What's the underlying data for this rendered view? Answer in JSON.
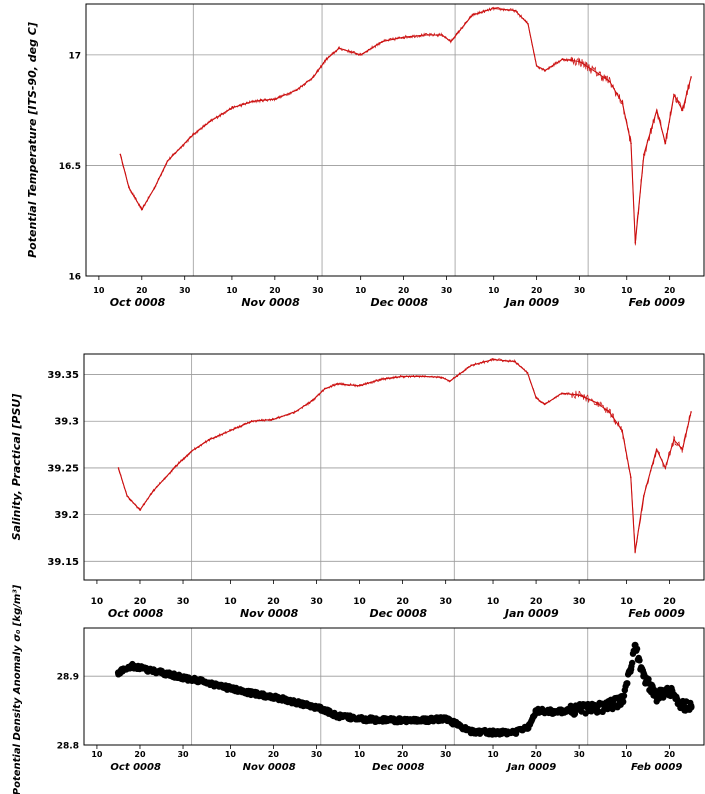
{
  "chart_data": [
    {
      "type": "line",
      "ylabel": "Potential Temperature [ITS-90, deg C]",
      "ylim": [
        16.0,
        17.23
      ],
      "yticks": [
        16,
        16.5,
        17
      ],
      "ytick_labels": [
        "16",
        "16.5",
        "17"
      ],
      "xlim": [
        "0008-10-07",
        "0009-02-28"
      ],
      "x_day_ticks": [
        "10",
        "20",
        "30",
        "10",
        "20",
        "30",
        "10",
        "20",
        "30",
        "10",
        "20",
        "30",
        "10",
        "20"
      ],
      "x_month_labels": [
        "Oct 0008",
        "Nov 0008",
        "Dec 0008",
        "Jan 0009",
        "Feb 0009"
      ],
      "grid": true,
      "color": "#cc1111",
      "series": [
        {
          "x": [
            "0008-10-15",
            "0008-10-17",
            "0008-10-20",
            "0008-10-23",
            "0008-10-26",
            "0008-10-29",
            "0008-11-01",
            "0008-11-05",
            "0008-11-10",
            "0008-11-15",
            "0008-11-20",
            "0008-11-25",
            "0008-11-29",
            "0008-12-02",
            "0008-12-05",
            "0008-12-10",
            "0008-12-15",
            "0008-12-20",
            "0008-12-25",
            "0008-12-29",
            "0008-12-31",
            "0009-01-05",
            "0009-01-10",
            "0009-01-15",
            "0009-01-18",
            "0009-01-20",
            "0009-01-22",
            "0009-01-26",
            "0009-01-30",
            "0009-02-03",
            "0009-02-06",
            "0009-02-09",
            "0009-02-11",
            "0009-02-12",
            "0009-02-14",
            "0009-02-17",
            "0009-02-19",
            "0009-02-21",
            "0009-02-23",
            "0009-02-25"
          ],
          "y": [
            16.55,
            16.4,
            16.3,
            16.4,
            16.52,
            16.58,
            16.64,
            16.7,
            16.76,
            16.79,
            16.8,
            16.84,
            16.9,
            16.98,
            17.03,
            17.0,
            17.06,
            17.08,
            17.09,
            17.09,
            17.06,
            17.18,
            17.21,
            17.2,
            17.14,
            16.95,
            16.93,
            16.98,
            16.97,
            16.92,
            16.88,
            16.78,
            16.6,
            16.15,
            16.55,
            16.75,
            16.6,
            16.82,
            16.75,
            16.9
          ]
        }
      ]
    },
    {
      "type": "line",
      "ylabel": "Salinity, Practical [PSU]",
      "ylim": [
        39.13,
        39.372
      ],
      "yticks": [
        39.15,
        39.2,
        39.25,
        39.3,
        39.35
      ],
      "ytick_labels": [
        "39.15",
        "39.2",
        "39.25",
        "39.3",
        "39.35"
      ],
      "xlim": [
        "0008-10-07",
        "0009-02-28"
      ],
      "x_day_ticks": [
        "10",
        "20",
        "30",
        "10",
        "20",
        "30",
        "10",
        "20",
        "30",
        "10",
        "20",
        "30",
        "10",
        "20"
      ],
      "x_month_labels": [
        "Oct 0008",
        "Nov 0008",
        "Dec 0008",
        "Jan 0009",
        "Feb 0009"
      ],
      "grid": true,
      "color": "#cc1111",
      "series": [
        {
          "x": [
            "0008-10-15",
            "0008-10-17",
            "0008-10-20",
            "0008-10-23",
            "0008-10-26",
            "0008-10-29",
            "0008-11-01",
            "0008-11-05",
            "0008-11-10",
            "0008-11-15",
            "0008-11-20",
            "0008-11-25",
            "0008-11-29",
            "0008-12-02",
            "0008-12-05",
            "0008-12-10",
            "0008-12-15",
            "0008-12-20",
            "0008-12-25",
            "0008-12-29",
            "0008-12-31",
            "0009-01-05",
            "0009-01-10",
            "0009-01-15",
            "0009-01-18",
            "0009-01-20",
            "0009-01-22",
            "0009-01-26",
            "0009-01-30",
            "0009-02-03",
            "0009-02-06",
            "0009-02-09",
            "0009-02-11",
            "0009-02-12",
            "0009-02-14",
            "0009-02-17",
            "0009-02-19",
            "0009-02-21",
            "0009-02-23",
            "0009-02-25"
          ],
          "y": [
            39.25,
            39.22,
            39.205,
            39.225,
            39.24,
            39.255,
            39.268,
            39.28,
            39.29,
            39.3,
            39.302,
            39.31,
            39.322,
            39.335,
            39.34,
            39.338,
            39.345,
            39.348,
            39.348,
            39.347,
            39.343,
            39.36,
            39.366,
            39.364,
            39.352,
            39.325,
            39.318,
            39.33,
            39.328,
            39.32,
            39.31,
            39.29,
            39.24,
            39.16,
            39.22,
            39.27,
            39.25,
            39.28,
            39.27,
            39.31
          ]
        }
      ]
    },
    {
      "type": "scatter",
      "ylabel": "Potential Density Anomaly σ₀ [kg/m³]",
      "ylim": [
        28.8,
        28.97
      ],
      "yticks": [
        28.8,
        28.9
      ],
      "ytick_labels": [
        "28.8",
        "28.9"
      ],
      "xlim": [
        "0008-10-07",
        "0009-02-28"
      ],
      "x_day_ticks": [
        "10",
        "20",
        "30",
        "10",
        "20",
        "30",
        "10",
        "20",
        "30",
        "10",
        "20",
        "30",
        "10",
        "20"
      ],
      "x_month_labels": [
        "Oct 0008",
        "Nov 0008",
        "Dec 0008",
        "Jan 0009",
        "Feb 0009"
      ],
      "grid": true,
      "color": "#000000",
      "series": [
        {
          "x": [
            "0008-10-15",
            "0008-10-18",
            "0008-10-20",
            "0008-10-25",
            "0008-10-30",
            "0008-11-05",
            "0008-11-10",
            "0008-11-15",
            "0008-11-20",
            "0008-11-25",
            "0008-11-30",
            "0008-12-05",
            "0008-12-10",
            "0008-12-15",
            "0008-12-20",
            "0008-12-25",
            "0008-12-30",
            "0009-01-01",
            "0009-01-05",
            "0009-01-10",
            "0009-01-15",
            "0009-01-18",
            "0009-01-20",
            "0009-01-25",
            "0009-01-30",
            "0009-02-05",
            "0009-02-09",
            "0009-02-11",
            "0009-02-12",
            "0009-02-14",
            "0009-02-17",
            "0009-02-20",
            "0009-02-22",
            "0009-02-25"
          ],
          "y": [
            28.905,
            28.915,
            28.912,
            28.905,
            28.898,
            28.89,
            28.882,
            28.875,
            28.87,
            28.862,
            28.855,
            28.842,
            28.838,
            28.836,
            28.836,
            28.836,
            28.838,
            28.832,
            28.82,
            28.818,
            28.818,
            28.825,
            28.85,
            28.848,
            28.852,
            28.856,
            28.865,
            28.91,
            28.945,
            28.9,
            28.87,
            28.88,
            28.86,
            28.855
          ]
        }
      ]
    }
  ]
}
